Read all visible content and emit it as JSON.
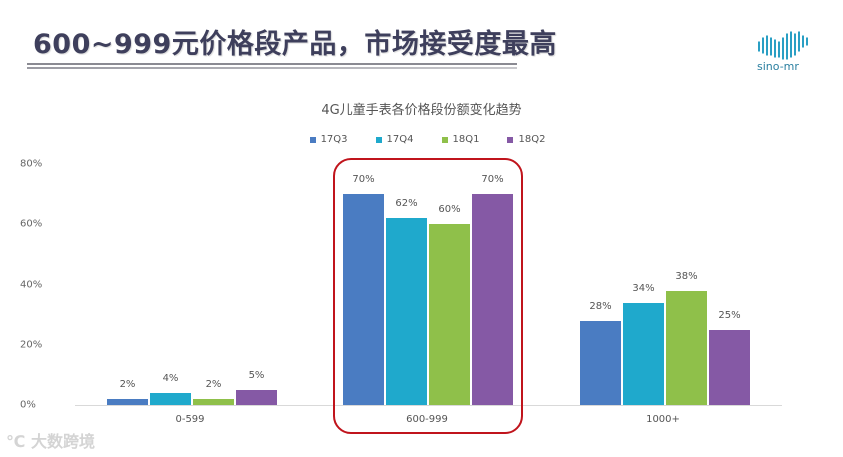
{
  "headline": "600~999元价格段产品，市场接受度最高",
  "logo": {
    "text": "sino-mr"
  },
  "watermark": {
    "icon": "kuajing-logo-icon",
    "text": "大数跨境"
  },
  "chart_data": {
    "type": "bar",
    "title": "4G儿童手表各价格段份额变化趋势",
    "xlabel": "",
    "ylabel": "",
    "ylim": [
      0,
      80
    ],
    "y_ticks": [
      "0%",
      "20%",
      "40%",
      "60%",
      "80%"
    ],
    "grid": false,
    "legend_position": "top",
    "categories": [
      "0-599",
      "600-999",
      "1000+"
    ],
    "series": [
      {
        "name": "17Q3",
        "color": "#4a7cc2",
        "values": [
          2,
          70,
          28
        ],
        "labels": [
          "2%",
          "70%",
          "28%"
        ]
      },
      {
        "name": "17Q4",
        "color": "#1fa9cc",
        "values": [
          4,
          62,
          34
        ],
        "labels": [
          "4%",
          "62%",
          "34%"
        ]
      },
      {
        "name": "18Q1",
        "color": "#8fc04a",
        "values": [
          2,
          60,
          38
        ],
        "labels": [
          "2%",
          "60%",
          "38%"
        ]
      },
      {
        "name": "18Q2",
        "color": "#8559a5",
        "values": [
          5,
          70,
          25
        ],
        "labels": [
          "5%",
          "70%",
          "25%"
        ]
      }
    ],
    "annotation": {
      "type": "rounded-rectangle",
      "color": "#c0141c",
      "highlights_category": "600-999"
    }
  }
}
